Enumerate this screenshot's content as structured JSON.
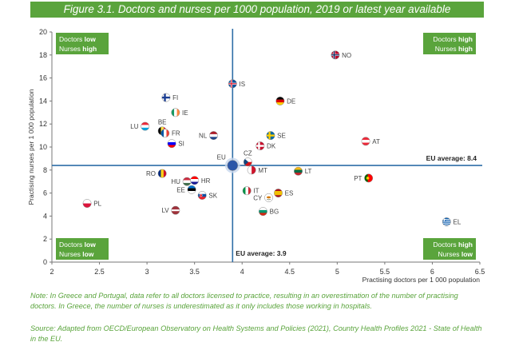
{
  "figure_title": "Figure 3.1. Doctors and nurses per 1000 population, 2019 or latest year available",
  "notes": {
    "note": "Note: In Greece and Portugal, data refer to all doctors licensed to practice, resulting in an overestimation of the number of practising doctors. In Greece, the number of nurses is underestimated as it only includes those working in hospitals.",
    "source": "Source: Adapted from OECD/European Observatory on Health Systems and Policies (2021), Country Health Profiles 2021 - State of Health in the EU."
  },
  "colors": {
    "accent_green": "#5aa43c",
    "reference_line": "#2f6ea7",
    "eu_marker": "#2b56a8"
  },
  "chart_data": {
    "type": "scatter",
    "xlabel": "Practising doctors per 1 000 population",
    "ylabel": "Practising nurses per 1 000 population",
    "xlim": [
      2,
      6.5
    ],
    "ylim": [
      0,
      20
    ],
    "xticks": [
      "2",
      "2.5",
      "3",
      "3.5",
      "4",
      "4.5",
      "5",
      "5.5",
      "6",
      "6.5"
    ],
    "yticks": [
      "0",
      "2",
      "4",
      "6",
      "8",
      "10",
      "12",
      "14",
      "16",
      "18",
      "20"
    ],
    "grid": false,
    "reference_lines": {
      "horizontal": {
        "value": 8.4,
        "label": "EU average: 8.4"
      },
      "vertical": {
        "value": 3.9,
        "label": "EU average: 3.9"
      }
    },
    "quadrant_labels": {
      "top_left": {
        "line1_prefix": "Doctors ",
        "line1_bold": "low",
        "line2_prefix": "Nurses ",
        "line2_bold": "high"
      },
      "top_right": {
        "line1_prefix": "Doctors ",
        "line1_bold": "high",
        "line2_prefix": "Nurses ",
        "line2_bold": "high"
      },
      "bottom_left": {
        "line1_prefix": "Doctors ",
        "line1_bold": "low",
        "line2_prefix": "Nurses ",
        "line2_bold": "low"
      },
      "bottom_right": {
        "line1_prefix": "Doctors ",
        "line1_bold": "high",
        "line2_prefix": "Nurses ",
        "line2_bold": "low"
      }
    },
    "points": [
      {
        "label": "NO",
        "x": 4.98,
        "y": 18.0,
        "label_pos": "right",
        "flag": "no"
      },
      {
        "label": "IS",
        "x": 3.9,
        "y": 15.5,
        "label_pos": "right",
        "flag": "is"
      },
      {
        "label": "FI",
        "x": 3.2,
        "y": 14.3,
        "label_pos": "right",
        "flag": "fi"
      },
      {
        "label": "DE",
        "x": 4.4,
        "y": 14.0,
        "label_pos": "right",
        "flag": "de"
      },
      {
        "label": "IE",
        "x": 3.3,
        "y": 13.0,
        "label_pos": "right",
        "flag": "ie"
      },
      {
        "label": "LU",
        "x": 2.98,
        "y": 11.8,
        "label_pos": "left",
        "flag": "lu"
      },
      {
        "label": "BE",
        "x": 3.16,
        "y": 11.4,
        "label_pos": "above",
        "flag": "be"
      },
      {
        "label": "FR",
        "x": 3.19,
        "y": 11.2,
        "label_pos": "right",
        "flag": "fr"
      },
      {
        "label": "NL",
        "x": 3.7,
        "y": 11.0,
        "label_pos": "left",
        "flag": "nl"
      },
      {
        "label": "SE",
        "x": 4.3,
        "y": 11.0,
        "label_pos": "right",
        "flag": "se"
      },
      {
        "label": "SI",
        "x": 3.26,
        "y": 10.3,
        "label_pos": "right",
        "flag": "si"
      },
      {
        "label": "DK",
        "x": 4.19,
        "y": 10.1,
        "label_pos": "right",
        "flag": "dk"
      },
      {
        "label": "AT",
        "x": 5.3,
        "y": 10.5,
        "label_pos": "right",
        "flag": "at"
      },
      {
        "label": "CZ",
        "x": 4.06,
        "y": 8.7,
        "label_pos": "above",
        "flag": "cz"
      },
      {
        "label": "EU",
        "x": 3.9,
        "y": 8.4,
        "label_pos": "above-left",
        "flag": "eu"
      },
      {
        "label": "MT",
        "x": 4.1,
        "y": 8.0,
        "label_pos": "right",
        "flag": "mt"
      },
      {
        "label": "LT",
        "x": 4.59,
        "y": 7.9,
        "label_pos": "right",
        "flag": "lt"
      },
      {
        "label": "RO",
        "x": 3.16,
        "y": 7.7,
        "label_pos": "left",
        "flag": "ro"
      },
      {
        "label": "HU",
        "x": 3.42,
        "y": 7.0,
        "label_pos": "left",
        "flag": "hu"
      },
      {
        "label": "HR",
        "x": 3.5,
        "y": 7.1,
        "label_pos": "right",
        "flag": "hr"
      },
      {
        "label": "PT",
        "x": 5.33,
        "y": 7.3,
        "label_pos": "left",
        "flag": "pt"
      },
      {
        "label": "EE",
        "x": 3.47,
        "y": 6.3,
        "label_pos": "left",
        "flag": "ee"
      },
      {
        "label": "SK",
        "x": 3.58,
        "y": 5.8,
        "label_pos": "right",
        "flag": "sk"
      },
      {
        "label": "IT",
        "x": 4.05,
        "y": 6.2,
        "label_pos": "right",
        "flag": "it"
      },
      {
        "label": "ES",
        "x": 4.38,
        "y": 6.0,
        "label_pos": "right",
        "flag": "es"
      },
      {
        "label": "CY",
        "x": 4.28,
        "y": 5.6,
        "label_pos": "left",
        "flag": "cy"
      },
      {
        "label": "PL",
        "x": 2.37,
        "y": 5.1,
        "label_pos": "right",
        "flag": "pl"
      },
      {
        "label": "LV",
        "x": 3.3,
        "y": 4.5,
        "label_pos": "left",
        "flag": "lv"
      },
      {
        "label": "BG",
        "x": 4.22,
        "y": 4.4,
        "label_pos": "right",
        "flag": "bg"
      },
      {
        "label": "EL",
        "x": 6.15,
        "y": 3.5,
        "label_pos": "right",
        "flag": "el"
      }
    ]
  }
}
